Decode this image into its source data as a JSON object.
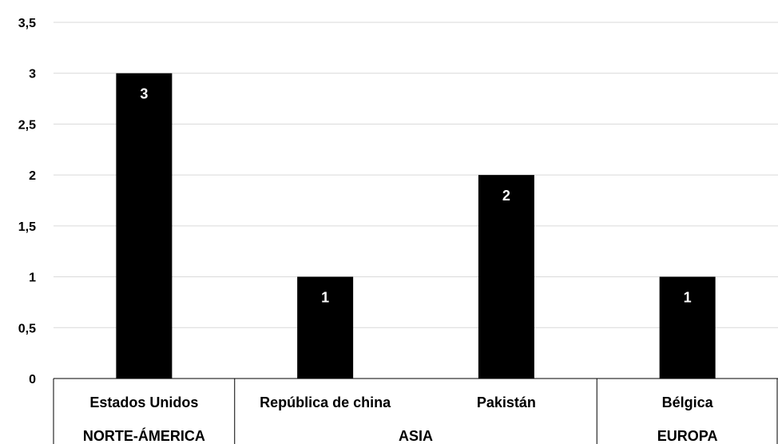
{
  "chart_data": {
    "type": "bar",
    "categories": [
      "Estados Unidos",
      "República de china",
      "Pakistán",
      "Bélgica"
    ],
    "groups": [
      {
        "label": "NORTE-ÁMERICA",
        "categories": [
          "Estados Unidos"
        ]
      },
      {
        "label": "ASIA",
        "categories": [
          "República de china",
          "Pakistán"
        ]
      },
      {
        "label": "EUROPA",
        "categories": [
          "Bélgica"
        ]
      }
    ],
    "values": [
      3,
      1,
      2,
      1
    ],
    "data_labels": [
      "3",
      "1",
      "2",
      "1"
    ],
    "y_ticks": [
      "0",
      "0,5",
      "1",
      "1,5",
      "2",
      "2,5",
      "3",
      "3,5"
    ],
    "ylim": [
      0,
      3.5
    ],
    "grid": true,
    "bar_color": "#000000",
    "grid_color": "#d9d9d9",
    "data_label_color": "#ffffff"
  }
}
